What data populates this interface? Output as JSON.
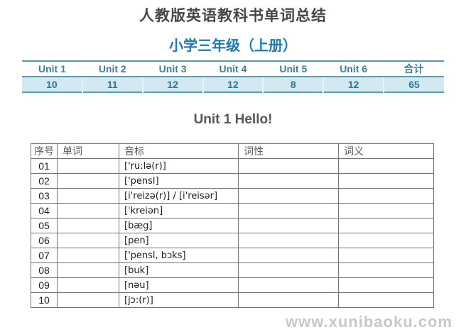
{
  "page": {
    "title": "人教版英语教科书单词总结",
    "subtitle": "小学三年级（上册）",
    "watermark": "www.xunibaoku.com"
  },
  "summary_table": {
    "columns": [
      "Unit 1",
      "Unit 2",
      "Unit 3",
      "Unit 4",
      "Unit 5",
      "Unit 6",
      "合计"
    ],
    "values": [
      "10",
      "11",
      "12",
      "12",
      "8",
      "12",
      "65"
    ]
  },
  "unit_section": {
    "title": "Unit 1 Hello!"
  },
  "word_table": {
    "headers": [
      "序号",
      "单词",
      "音标",
      "词性",
      "词义"
    ],
    "rows": [
      {
        "no": "01",
        "word": "",
        "phonetic": "['ru:lə(r)]",
        "pos": "",
        "meaning": ""
      },
      {
        "no": "02",
        "word": "",
        "phonetic": "['pensl]",
        "pos": "",
        "meaning": ""
      },
      {
        "no": "03",
        "word": "",
        "phonetic": "[i'reizə(r)] / [i'reisər]",
        "pos": "",
        "meaning": ""
      },
      {
        "no": "04",
        "word": "",
        "phonetic": "[ˈkreiən]",
        "pos": "",
        "meaning": ""
      },
      {
        "no": "05",
        "word": "",
        "phonetic": "[bæg]",
        "pos": "",
        "meaning": ""
      },
      {
        "no": "06",
        "word": "",
        "phonetic": "[pen]",
        "pos": "",
        "meaning": ""
      },
      {
        "no": "07",
        "word": "",
        "phonetic": "['pensl, bɔks]",
        "pos": "",
        "meaning": ""
      },
      {
        "no": "08",
        "word": "",
        "phonetic": "[buk]",
        "pos": "",
        "meaning": ""
      },
      {
        "no": "09",
        "word": "",
        "phonetic": "[nəu]",
        "pos": "",
        "meaning": ""
      },
      {
        "no": "10",
        "word": "",
        "phonetic": "[jɔ:(r)]",
        "pos": "",
        "meaning": ""
      }
    ]
  },
  "colors": {
    "accent_teal": "#4ba1b9",
    "summary_row_bg": "#d3e8f0",
    "summary_text_teal": "#2d7694",
    "subtitle_blue": "#1c79b5",
    "title_gray": "#474747",
    "table_border_gray": "#737373",
    "watermark_gray": "#c8c8c8"
  }
}
